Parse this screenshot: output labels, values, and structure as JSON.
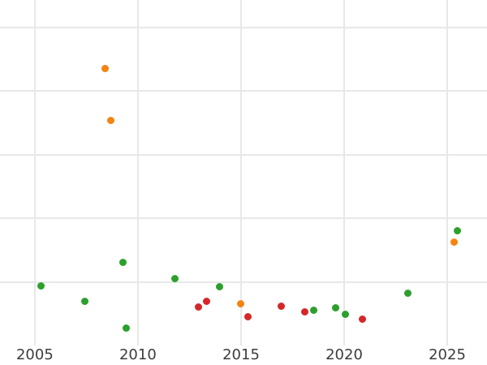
{
  "chart_data": {
    "type": "scatter",
    "title": "",
    "xlabel": "",
    "ylabel": "",
    "grid": "on",
    "legend": "none",
    "x_ticks": [
      2005,
      2010,
      2015,
      2020,
      2025
    ],
    "x_tick_labels": [
      "2005",
      "2010",
      "2015",
      "2020",
      "2025"
    ],
    "x_domain": [
      2003.31,
      2026.93
    ],
    "y_domain": [
      0,
      5.43
    ],
    "y_gridline_values": [
      1,
      2,
      3,
      4,
      5
    ],
    "y_axis_note": "y-axis tick labels are not visible in the image; y values are in gridline units above the plot bottom (one gridline spacing = 1 unit)",
    "series": [
      {
        "name": "green",
        "color": "#2ca02c",
        "points": [
          [
            2005.31,
            0.94
          ],
          [
            2007.41,
            0.69
          ],
          [
            2009.28,
            1.31
          ],
          [
            2009.41,
            0.28
          ],
          [
            2011.81,
            1.05
          ],
          [
            2013.95,
            0.92
          ],
          [
            2018.52,
            0.56
          ],
          [
            2019.58,
            0.59
          ],
          [
            2020.04,
            0.49
          ],
          [
            2023.09,
            0.82
          ],
          [
            2025.48,
            1.8
          ]
        ]
      },
      {
        "name": "orange",
        "color": "#f5830f",
        "points": [
          [
            2008.39,
            4.35
          ],
          [
            2008.7,
            3.54
          ],
          [
            2014.98,
            0.66
          ],
          [
            2025.33,
            1.62
          ]
        ]
      },
      {
        "name": "red",
        "color": "#d62728",
        "points": [
          [
            2012.93,
            0.6
          ],
          [
            2013.34,
            0.69
          ],
          [
            2015.34,
            0.45
          ],
          [
            2016.96,
            0.62
          ],
          [
            2018.08,
            0.53
          ],
          [
            2020.89,
            0.41
          ]
        ]
      }
    ]
  },
  "style": {
    "background_color": "#ffffff",
    "gridline_color": "#e8e8e8",
    "tick_label_color": "#3d3d3d"
  }
}
